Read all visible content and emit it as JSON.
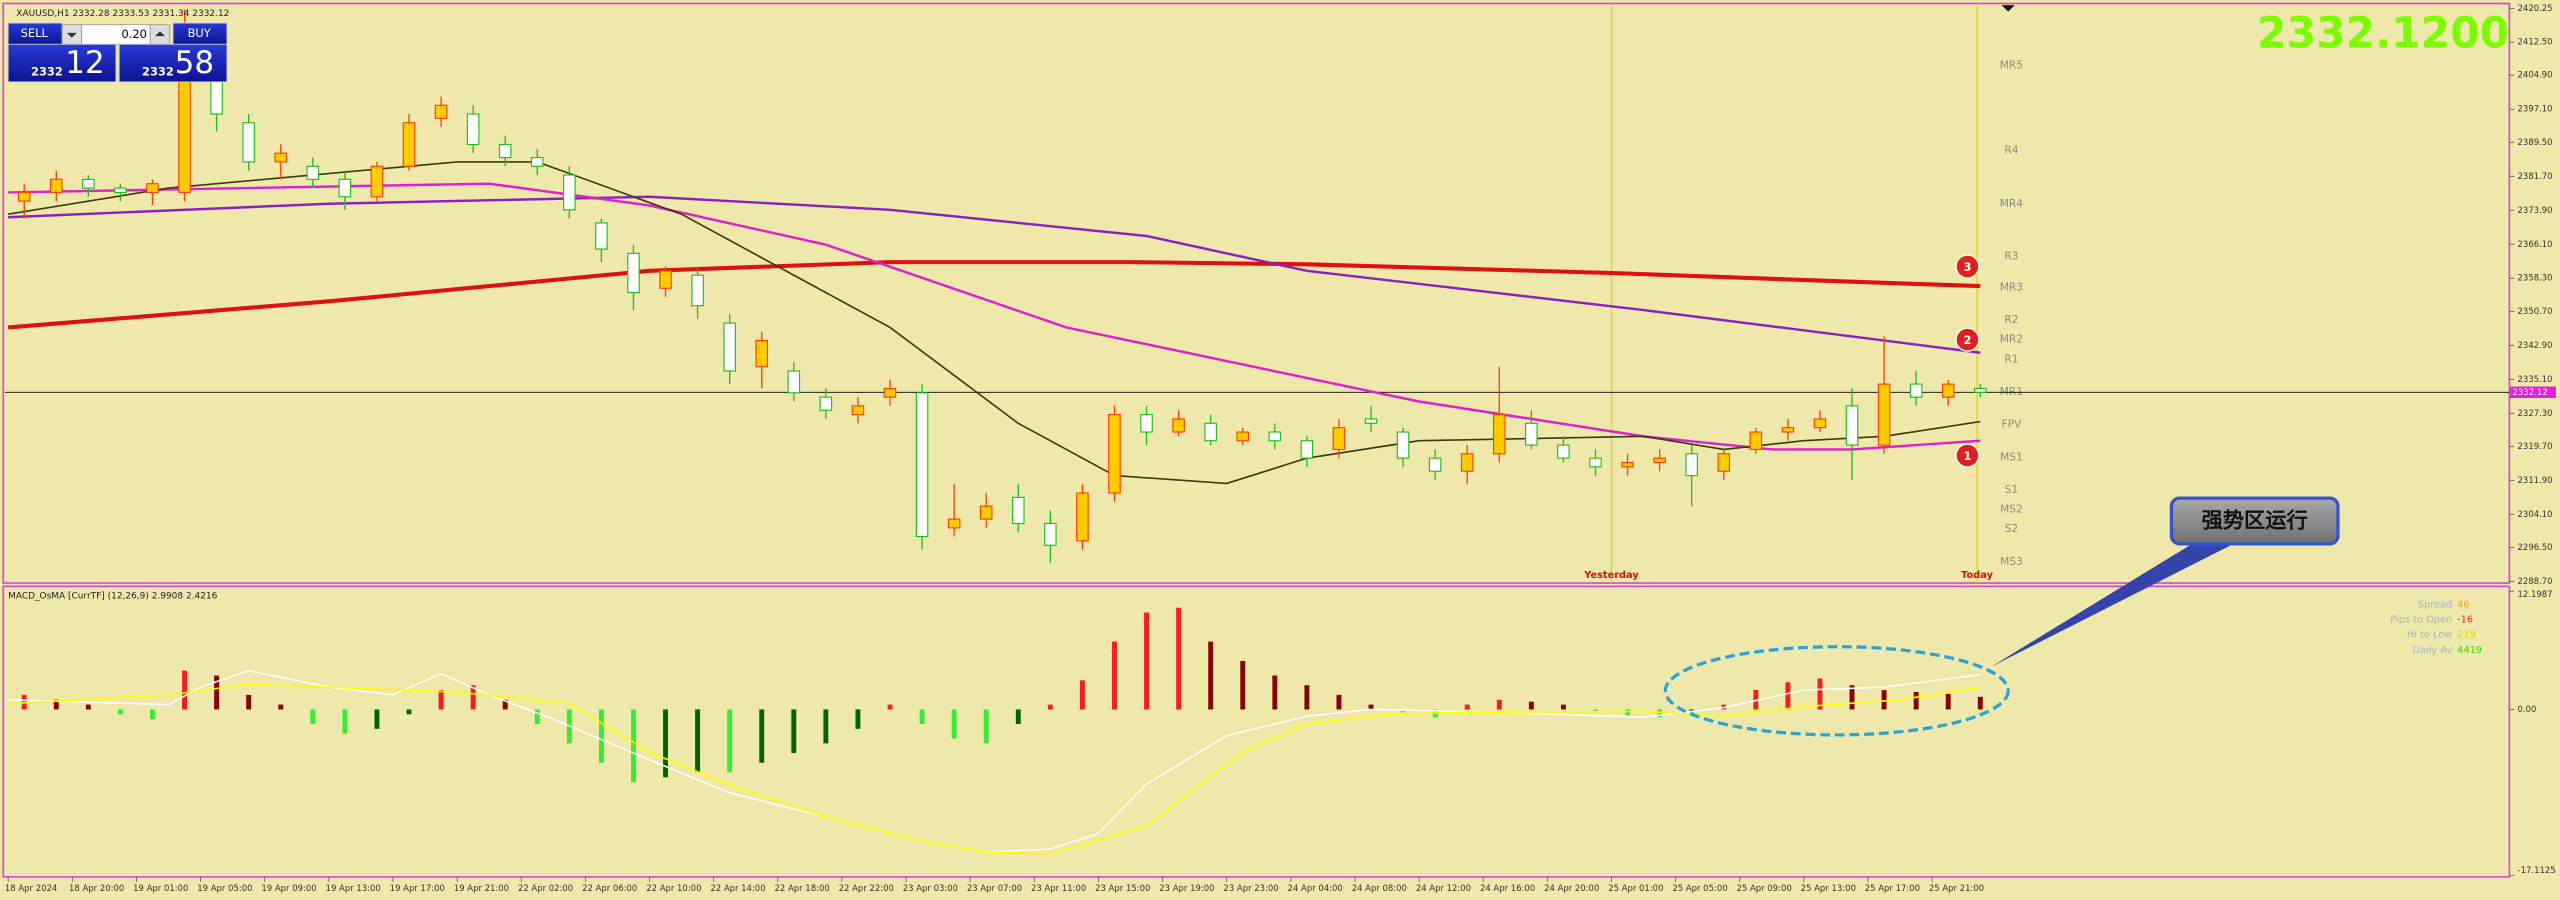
{
  "symbol_line": "XAUUSD,H1  2332.28 2333.53 2331.34 2332.12",
  "trade_panel": {
    "sell": "SELL",
    "buy": "BUY",
    "lot": "0.20",
    "sell_big": "2332",
    "sell_small": "12",
    "buy_big": "2332",
    "buy_small": "58"
  },
  "price_display": "2332.1200",
  "annotation": "强势区运行",
  "chart_data": [
    {
      "type": "candlestick",
      "x": [
        1,
        3,
        5,
        7,
        9,
        11,
        13,
        15,
        17,
        19,
        21,
        23,
        25,
        27,
        29,
        31,
        33,
        35,
        37,
        39,
        41,
        43,
        45,
        47,
        49,
        51,
        53,
        55,
        57,
        59,
        61,
        63,
        65,
        67,
        69,
        71,
        73,
        75,
        77,
        79,
        81,
        83,
        85,
        87,
        89,
        91,
        93,
        95,
        97,
        99,
        101,
        103,
        105,
        107,
        109,
        111,
        113,
        115,
        117,
        119,
        121,
        123
      ],
      "open": [
        2376,
        2378,
        2381,
        2379,
        2378,
        2378,
        2406,
        2394,
        2385,
        2384,
        2381,
        2377,
        2384,
        2395,
        2396,
        2389,
        2386,
        2382,
        2371,
        2364,
        2356,
        2359,
        2348,
        2338,
        2337,
        2331,
        2327,
        2331,
        2332,
        2301,
        2303,
        2308,
        2302,
        2298,
        2309,
        2327,
        2323,
        2325,
        2321,
        2323,
        2321,
        2319,
        2326,
        2323,
        2317,
        2314,
        2318,
        2325,
        2320,
        2317,
        2315,
        2316,
        2318,
        2314,
        2319,
        2323,
        2324,
        2329,
        2320,
        2334,
        2331,
        2333
      ],
      "high": [
        2380,
        2383,
        2382,
        2380,
        2381,
        2420,
        2412,
        2396,
        2389,
        2386,
        2383,
        2385,
        2396,
        2400,
        2398,
        2391,
        2388,
        2384,
        2372,
        2366,
        2361,
        2361,
        2350,
        2346,
        2339,
        2333,
        2331,
        2335,
        2334,
        2311,
        2309,
        2311,
        2305,
        2311,
        2329,
        2329,
        2328,
        2327,
        2324,
        2325,
        2322,
        2326,
        2329,
        2324,
        2319,
        2320,
        2338,
        2328,
        2322,
        2319,
        2318,
        2319,
        2320,
        2319,
        2324,
        2326,
        2328,
        2333,
        2345,
        2337,
        2335,
        2334
      ],
      "low": [
        2372,
        2376,
        2377,
        2376,
        2375,
        2376,
        2392,
        2383,
        2381,
        2379,
        2374,
        2376,
        2383,
        2393,
        2387,
        2384,
        2382,
        2372,
        2362,
        2351,
        2354,
        2349,
        2334,
        2333,
        2330,
        2326,
        2325,
        2329,
        2296,
        2299,
        2301,
        2300,
        2293,
        2296,
        2307,
        2320,
        2322,
        2320,
        2320,
        2319,
        2315,
        2317,
        2323,
        2315,
        2312,
        2311,
        2316,
        2319,
        2316,
        2313,
        2313,
        2314,
        2306,
        2312,
        2318,
        2321,
        2323,
        2312,
        2318,
        2329,
        2329,
        2331
      ],
      "close": [
        2378,
        2381,
        2379,
        2378,
        2380,
        2414,
        2396,
        2385,
        2387,
        2381,
        2377,
        2384,
        2394,
        2398,
        2389,
        2386,
        2384,
        2374,
        2365,
        2355,
        2360,
        2352,
        2337,
        2344,
        2332,
        2328,
        2329,
        2333,
        2299,
        2303,
        2306,
        2302,
        2297,
        2309,
        2327,
        2323,
        2326,
        2321,
        2323,
        2321,
        2317,
        2324,
        2325,
        2317,
        2314,
        2318,
        2327,
        2320,
        2317,
        2315,
        2316,
        2317,
        2313,
        2318,
        2323,
        2324,
        2326,
        2320,
        2334,
        2331,
        2334,
        2332.12
      ],
      "colors": {
        "up_fill": "#ffcc00",
        "up_line": "#ff4000",
        "down_fill": "#ffffff",
        "down_line": "#22bb22"
      },
      "xlim": [
        0,
        156
      ],
      "xticks": [
        {
          "value": 0,
          "label": "18 Apr 2024"
        },
        {
          "value": 4,
          "label": "18 Apr 20:00"
        },
        {
          "value": 8,
          "label": "19 Apr 01:00"
        },
        {
          "value": 12,
          "label": "19 Apr 05:00"
        },
        {
          "value": 16,
          "label": "19 Apr 09:00"
        },
        {
          "value": 20,
          "label": "19 Apr 13:00"
        },
        {
          "value": 24,
          "label": "19 Apr 17:00"
        },
        {
          "value": 28,
          "label": "19 Apr 21:00"
        },
        {
          "value": 32,
          "label": "22 Apr 02:00"
        },
        {
          "value": 36,
          "label": "22 Apr 06:00"
        },
        {
          "value": 40,
          "label": "22 Apr 10:00"
        },
        {
          "value": 44,
          "label": "22 Apr 14:00"
        },
        {
          "value": 48,
          "label": "22 Apr 18:00"
        },
        {
          "value": 52,
          "label": "22 Apr 22:00"
        },
        {
          "value": 56,
          "label": "23 Apr 03:00"
        },
        {
          "value": 60,
          "label": "23 Apr 07:00"
        },
        {
          "value": 64,
          "label": "23 Apr 11:00"
        },
        {
          "value": 68,
          "label": "23 Apr 15:00"
        },
        {
          "value": 72,
          "label": "23 Apr 19:00"
        },
        {
          "value": 76,
          "label": "23 Apr 23:00"
        },
        {
          "value": 80,
          "label": "24 Apr 04:00"
        },
        {
          "value": 84,
          "label": "24 Apr 08:00"
        },
        {
          "value": 88,
          "label": "24 Apr 12:00"
        },
        {
          "value": 92,
          "label": "24 Apr 16:00"
        },
        {
          "value": 96,
          "label": "24 Apr 20:00"
        },
        {
          "value": 100,
          "label": "25 Apr 01:00"
        },
        {
          "value": 104,
          "label": "25 Apr 05:00"
        },
        {
          "value": 108,
          "label": "25 Apr 09:00"
        },
        {
          "value": 112,
          "label": "25 Apr 13:00"
        },
        {
          "value": 116,
          "label": "25 Apr 17:00"
        },
        {
          "value": 120,
          "label": "25 Apr 21:00"
        }
      ],
      "ylim": [
        2288.7,
        2420.25
      ],
      "yticks": [
        2420.25,
        {
          "value": 2412.5,
          "label": "2412.50"
        },
        {
          "value": 2404.9,
          "label": "2404.90"
        },
        {
          "value": 2397.1,
          "label": "2397.10"
        },
        {
          "value": 2389.5,
          "label": "2389.50"
        },
        {
          "value": 2381.7,
          "label": "2381.70"
        },
        {
          "value": 2373.9,
          "label": "2373.90"
        },
        {
          "value": 2366.1,
          "label": "2366.10"
        },
        {
          "value": 2358.3,
          "label": "2358.30"
        },
        {
          "value": 2350.7,
          "label": "2350.70"
        },
        {
          "value": 2342.9,
          "label": "2342.90"
        },
        {
          "value": 2335.1,
          "label": "2335.10"
        },
        {
          "value": 2327.3,
          "label": "2327.30"
        },
        {
          "value": 2319.7,
          "label": "2319.70"
        },
        {
          "value": 2311.9,
          "label": "2311.90"
        },
        {
          "value": 2304.1,
          "label": "2304.10"
        },
        {
          "value": 2296.5,
          "label": "2296.50"
        },
        {
          "value": 2288.7,
          "label": "2288.70"
        }
      ],
      "last": 2332.12,
      "last_color": "#e020e0",
      "ma": [
        {
          "color": "#e01010",
          "width": 2.5,
          "x": [
            0,
            20,
            40,
            55,
            70,
            81,
            100,
            115,
            123
          ],
          "values": [
            2347,
            2353,
            2360,
            2362,
            2362,
            2361.5,
            2359.5,
            2357.5,
            2356.5
          ]
        },
        {
          "color": "#8a20c0",
          "width": 1.5,
          "x": [
            0,
            20,
            40,
            55,
            71,
            81,
            102,
            123
          ],
          "values": [
            2372.3,
            2375.4,
            2377,
            2374,
            2368,
            2360,
            2351,
            2341.2
          ]
        },
        {
          "color": "#e020d0",
          "width": 1.5,
          "x": [
            0,
            30,
            40,
            51,
            66,
            88,
            102,
            110,
            115,
            123
          ],
          "values": [
            2378,
            2380,
            2375,
            2366,
            2347,
            2330,
            2322,
            2319,
            2319,
            2321
          ]
        },
        {
          "color": "#3a3a10",
          "width": 1,
          "x": [
            0,
            10,
            28,
            33,
            42,
            55,
            63,
            69,
            76,
            81,
            88,
            102,
            107,
            112,
            117,
            123
          ],
          "values": [
            2373,
            2379,
            2385,
            2385,
            2373,
            2347,
            2325,
            2313,
            2311.2,
            2317,
            2321,
            2322,
            2319,
            2321,
            2322,
            2325.4
          ]
        }
      ],
      "levels": [
        {
          "label": "MR5",
          "value": 2407.1
        },
        {
          "label": "R4",
          "value": 2387.6
        },
        {
          "label": "MR4",
          "value": 2375.3
        },
        {
          "label": "R3",
          "value": 2363.3
        },
        {
          "label": "MR3",
          "value": 2356.2
        },
        {
          "label": "R2",
          "value": 2348.7
        },
        {
          "label": "MR2",
          "value": 2344.2
        },
        {
          "label": "R1",
          "value": 2339.7
        },
        {
          "label": "MR1",
          "value": 2332.2
        },
        {
          "label": "FPV",
          "value": 2324.7
        },
        {
          "label": "MS1",
          "value": 2317.2
        },
        {
          "label": "S1",
          "value": 2309.7
        },
        {
          "label": "MS2",
          "value": 2305.2
        },
        {
          "label": "S2",
          "value": 2300.7
        },
        {
          "label": "MS3",
          "value": 2293.2
        }
      ],
      "markers": [
        {
          "label": "3",
          "x": 122.2,
          "value": 2361
        },
        {
          "label": "2",
          "x": 122.2,
          "value": 2344.2
        },
        {
          "label": "1",
          "x": 122.2,
          "value": 2317.6
        }
      ],
      "sessions": [
        {
          "label": "Yesterday",
          "x": 100
        },
        {
          "label": "Today",
          "x": 122.8
        }
      ]
    },
    {
      "type": "macd",
      "title": "MACD_OsMA [CurrTF] (12,26,9) 2.9908 2.4216",
      "x": [
        1,
        3,
        5,
        7,
        9,
        11,
        13,
        15,
        17,
        19,
        21,
        23,
        25,
        27,
        29,
        31,
        33,
        35,
        37,
        39,
        41,
        43,
        45,
        47,
        49,
        51,
        53,
        55,
        57,
        59,
        61,
        63,
        65,
        67,
        69,
        71,
        73,
        75,
        77,
        79,
        81,
        83,
        85,
        87,
        89,
        91,
        93,
        95,
        97,
        99,
        101,
        103,
        105,
        107,
        109,
        111,
        113,
        115,
        117,
        119,
        121,
        123
      ],
      "values": [
        1.5,
        1,
        0.5,
        -0.5,
        -1,
        4,
        3.5,
        1.5,
        0.5,
        -1.5,
        -2.5,
        -2,
        -0.5,
        2,
        2.5,
        1,
        -1.5,
        -3.5,
        -5.5,
        -7.5,
        -7,
        -6.5,
        -6.5,
        -5.5,
        -4.5,
        -3.5,
        -2,
        0.5,
        -1.5,
        -3,
        -3.5,
        -1.5,
        0.5,
        3,
        7,
        10,
        10.5,
        7,
        5,
        3.5,
        2.5,
        1.5,
        0.5,
        -0.3,
        -0.8,
        0.5,
        1,
        0.8,
        0.5,
        -0.2,
        -0.6,
        -0.8,
        -0.3,
        0.5,
        2,
        2.8,
        3.2,
        2.5,
        2,
        1.8,
        1.6,
        1.3
      ],
      "bar_colors": {
        "pos_up": "#ff1a1a",
        "pos_down": "#8b0000",
        "neg_down": "#33ee33",
        "neg_up": "#006400"
      },
      "ylim": [
        -17.1125,
        12.1987
      ],
      "yticks": [
        12.1987,
        {
          "value": 0,
          "label": "0.00"
        },
        -17.1125
      ],
      "lines": [
        {
          "color": "#ffffff",
          "x": [
            0,
            10,
            12,
            15,
            20,
            24,
            27,
            30,
            34,
            40,
            45,
            51,
            57,
            61,
            65,
            68,
            71,
            76,
            81,
            85,
            91,
            102,
            107,
            112,
            117,
            123
          ],
          "values": [
            1,
            0.5,
            2.3,
            4,
            2.3,
            1.5,
            3.7,
            1.5,
            -1,
            -5.2,
            -8.6,
            -11.1,
            -13.6,
            -14.7,
            -14.4,
            -12.8,
            -7.7,
            -2.7,
            -0.7,
            0,
            -0.2,
            -0.8,
            0.2,
            2,
            2.3,
            3.6
          ]
        },
        {
          "color": "#ffff00",
          "x": [
            0,
            10,
            15,
            20,
            28,
            35,
            40,
            45,
            51,
            57,
            61,
            65,
            71,
            77,
            81,
            86,
            91,
            102,
            107,
            112,
            118,
            123
          ],
          "values": [
            0.6,
            1.5,
            2.6,
            2.3,
            1.8,
            0.6,
            -4.4,
            -7.8,
            -11.1,
            -13.6,
            -14.7,
            -14.9,
            -12,
            -4.4,
            -1.5,
            -0.5,
            -0.3,
            -0.2,
            -0.7,
            0.3,
            1,
            2.3
          ]
        }
      ],
      "info": [
        {
          "label": "Spread",
          "value": 46,
          "color": "#ffa500"
        },
        {
          "label": "Pips to Open",
          "value": -16,
          "color": "#ff2020"
        },
        {
          "label": "Hi to Low",
          "value": 219,
          "color": "#d8d800"
        },
        {
          "label": "Daily Av",
          "value": 4419,
          "color": "#33dd00"
        }
      ]
    }
  ]
}
